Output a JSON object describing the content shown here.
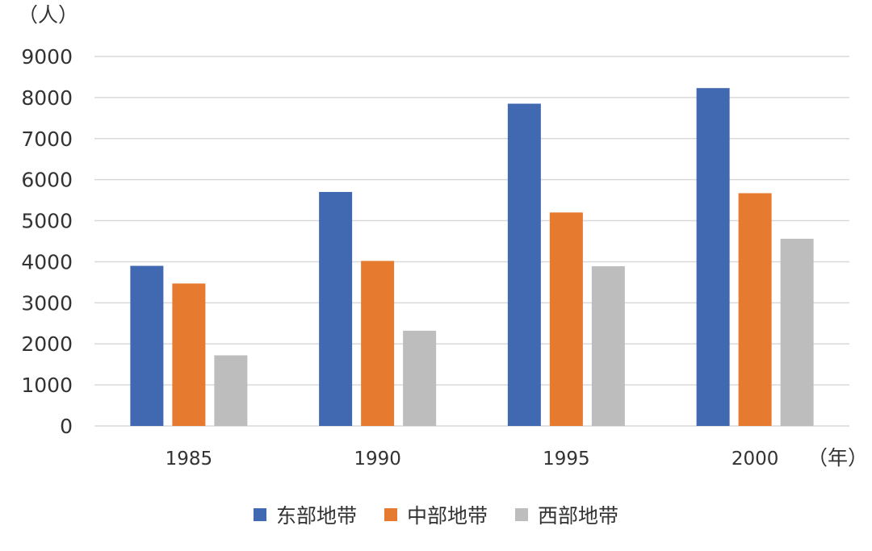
{
  "chart_data": {
    "type": "bar",
    "categories": [
      "1985",
      "1990",
      "1995",
      "2000"
    ],
    "series": [
      {
        "name": "东部地带",
        "color": "#4169B2",
        "values": [
          3900,
          5700,
          7850,
          8230
        ]
      },
      {
        "name": "中部地带",
        "color": "#E67B30",
        "values": [
          3470,
          4020,
          5200,
          5670
        ]
      },
      {
        "name": "西部地带",
        "color": "#BDBDBD",
        "values": [
          1720,
          2320,
          3890,
          4560
        ]
      }
    ],
    "ylim": [
      0,
      9000
    ],
    "yticks": [
      0,
      1000,
      2000,
      3000,
      4000,
      5000,
      6000,
      7000,
      8000,
      9000
    ],
    "ylabel": "（人）",
    "xlabel": "（年）",
    "grid": true,
    "legend_position": "bottom"
  }
}
